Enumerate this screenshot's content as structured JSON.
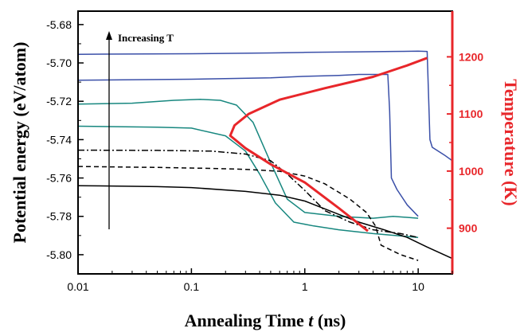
{
  "chart_data": {
    "type": "line",
    "title": "",
    "xlabel_prefix": "Annealing Time ",
    "xlabel_var": "t",
    "xlabel_suffix": " (ns)",
    "ylabel": "Potential energy (eV/atom)",
    "y2label": "Temperature (K)",
    "annotation": "Increasing T",
    "x_scale": "log",
    "xlim": [
      0.01,
      20
    ],
    "ylim": [
      -5.81,
      -5.673
    ],
    "y2lim": [
      820,
      1280
    ],
    "x_ticks": [
      0.01,
      0.1,
      1,
      10
    ],
    "x_tick_labels": [
      "0.01",
      "0.1",
      "1",
      "10"
    ],
    "y_ticks": [
      -5.68,
      -5.7,
      -5.72,
      -5.74,
      -5.76,
      -5.78,
      -5.8
    ],
    "y_tick_labels": [
      "-5.68",
      "-5.70",
      "-5.72",
      "-5.74",
      "-5.76",
      "-5.78",
      "-5.80"
    ],
    "y2_ticks": [
      900,
      1000,
      1100,
      1200
    ],
    "y2_tick_labels": [
      "900",
      "1000",
      "1100",
      "1200"
    ],
    "grid": false,
    "colors": {
      "blue": "#3a4fa8",
      "teal": "#17877f",
      "black": "#000000",
      "red": "#e8262a"
    },
    "series": [
      {
        "color": "blue",
        "style": "solid",
        "axis": "left",
        "points": [
          [
            0.01,
            -5.6955
          ],
          [
            0.1,
            -5.6952
          ],
          [
            0.5,
            -5.6948
          ],
          [
            1,
            -5.6945
          ],
          [
            3,
            -5.6942
          ],
          [
            6,
            -5.694
          ],
          [
            10,
            -5.6939
          ],
          [
            12,
            -5.694
          ],
          [
            12.4,
            -5.72
          ],
          [
            12.7,
            -5.74
          ],
          [
            13.3,
            -5.744
          ],
          [
            15,
            -5.746
          ],
          [
            17,
            -5.748
          ],
          [
            20,
            -5.751
          ]
        ]
      },
      {
        "color": "blue",
        "style": "solid",
        "axis": "left",
        "points": [
          [
            0.01,
            -5.709
          ],
          [
            0.1,
            -5.7085
          ],
          [
            0.5,
            -5.7078
          ],
          [
            1,
            -5.707
          ],
          [
            2,
            -5.7065
          ],
          [
            3,
            -5.706
          ],
          [
            5.4,
            -5.706
          ],
          [
            5.6,
            -5.725
          ],
          [
            5.8,
            -5.76
          ],
          [
            6.5,
            -5.766
          ],
          [
            8,
            -5.774
          ],
          [
            10,
            -5.78
          ]
        ]
      },
      {
        "color": "teal",
        "style": "solid",
        "axis": "left",
        "points": [
          [
            0.01,
            -5.7215
          ],
          [
            0.03,
            -5.721
          ],
          [
            0.07,
            -5.7195
          ],
          [
            0.12,
            -5.719
          ],
          [
            0.18,
            -5.7195
          ],
          [
            0.25,
            -5.722
          ],
          [
            0.35,
            -5.731
          ],
          [
            0.5,
            -5.752
          ],
          [
            0.7,
            -5.771
          ],
          [
            1,
            -5.778
          ],
          [
            2,
            -5.78
          ],
          [
            4,
            -5.781
          ],
          [
            6,
            -5.78
          ],
          [
            10,
            -5.781
          ]
        ]
      },
      {
        "color": "teal",
        "style": "solid",
        "axis": "left",
        "points": [
          [
            0.01,
            -5.733
          ],
          [
            0.05,
            -5.7335
          ],
          [
            0.1,
            -5.734
          ],
          [
            0.2,
            -5.738
          ],
          [
            0.3,
            -5.746
          ],
          [
            0.4,
            -5.758
          ],
          [
            0.55,
            -5.773
          ],
          [
            0.8,
            -5.783
          ],
          [
            1.2,
            -5.785
          ],
          [
            2,
            -5.787
          ],
          [
            4,
            -5.789
          ],
          [
            10,
            -5.791
          ]
        ]
      },
      {
        "color": "black",
        "style": "dashdot",
        "axis": "left",
        "points": [
          [
            0.01,
            -5.7455
          ],
          [
            0.05,
            -5.7456
          ],
          [
            0.15,
            -5.746
          ],
          [
            0.3,
            -5.7475
          ],
          [
            0.5,
            -5.751
          ],
          [
            0.7,
            -5.758
          ],
          [
            1,
            -5.7665
          ],
          [
            1.5,
            -5.777
          ],
          [
            2.5,
            -5.783
          ],
          [
            4,
            -5.787
          ],
          [
            7,
            -5.789
          ],
          [
            10,
            -5.791
          ]
        ]
      },
      {
        "color": "black",
        "style": "dashed",
        "axis": "left",
        "points": [
          [
            0.01,
            -5.754
          ],
          [
            0.05,
            -5.7545
          ],
          [
            0.15,
            -5.755
          ],
          [
            0.3,
            -5.7555
          ],
          [
            0.6,
            -5.7565
          ],
          [
            1,
            -5.759
          ],
          [
            1.5,
            -5.763
          ],
          [
            2.5,
            -5.771
          ],
          [
            3.5,
            -5.778
          ],
          [
            4.2,
            -5.785
          ],
          [
            4.7,
            -5.795
          ],
          [
            5.5,
            -5.797
          ],
          [
            7,
            -5.8
          ],
          [
            10,
            -5.803
          ]
        ]
      },
      {
        "color": "black",
        "style": "solid",
        "axis": "left",
        "points": [
          [
            0.01,
            -5.764
          ],
          [
            0.05,
            -5.7645
          ],
          [
            0.1,
            -5.765
          ],
          [
            0.3,
            -5.767
          ],
          [
            0.6,
            -5.769
          ],
          [
            1,
            -5.772
          ],
          [
            2,
            -5.779
          ],
          [
            3,
            -5.783
          ],
          [
            5,
            -5.787
          ],
          [
            8,
            -5.791
          ],
          [
            12,
            -5.796
          ],
          [
            20,
            -5.802
          ]
        ]
      },
      {
        "color": "red",
        "style": "solid",
        "width": 3,
        "axis": "right",
        "points": [
          [
            3.6,
            895
          ],
          [
            2,
            935
          ],
          [
            1,
            980
          ],
          [
            0.5,
            1012
          ],
          [
            0.3,
            1040
          ],
          [
            0.22,
            1062
          ],
          [
            0.24,
            1080
          ],
          [
            0.32,
            1100
          ],
          [
            0.6,
            1125
          ],
          [
            1.5,
            1145
          ],
          [
            4,
            1165
          ],
          [
            8,
            1185
          ],
          [
            12,
            1198
          ]
        ]
      }
    ]
  }
}
